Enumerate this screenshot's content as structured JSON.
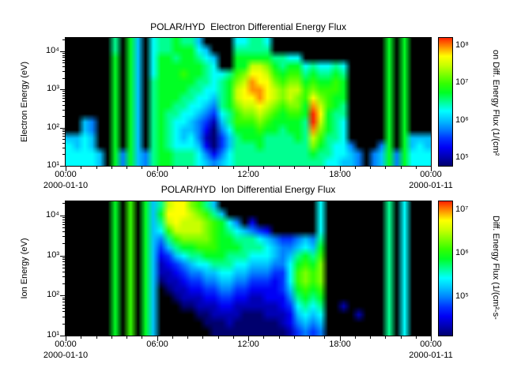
{
  "background": "#ffffff",
  "colormap": [
    "#000000",
    "#00006e",
    "#0000b4",
    "#0000f5",
    "#0033ff",
    "#0080ff",
    "#00c3ff",
    "#00ffff",
    "#00ff91",
    "#00ff24",
    "#33ff00",
    "#7dff00",
    "#c8ff00",
    "#ffff00",
    "#ff9100",
    "#ff2200"
  ],
  "chart_data": [
    {
      "type": "heatmap",
      "id": "electron",
      "title": "POLAR/HYD  Electron Differential Energy Flux",
      "xlabel": "",
      "ylabel": "Electron Energy (eV)",
      "x_ticks": [
        "00:00",
        "06:00",
        "12:00",
        "18:00",
        "00:00"
      ],
      "x_range_hours": [
        0,
        24
      ],
      "date_start": "2000-01-10",
      "date_end": "2000-01-11",
      "y_scale": "log",
      "y_ticks": [
        "10¹",
        "10²",
        "10³",
        "10⁴"
      ],
      "y_tick_exps": [
        1,
        2,
        3,
        4
      ],
      "y_range_exp": [
        1,
        4.35
      ],
      "colorbar_title": "on Diff. Energy Flux (1/(cm²",
      "colorbar_ticks": [
        "10⁵",
        "10⁶",
        "10⁷",
        "10⁸"
      ],
      "colorbar_tick_exps": [
        5,
        6,
        7,
        8
      ],
      "colorbar_range_exp": [
        4.8,
        8.2
      ],
      "grid_encoding": "each row = 48 half-hour time bins (00:00 to 24:00) as hex colormap indices 0-15 (0 = no flux/black); rows ordered top (~2e4 eV) to bottom (~10 eV)",
      "grid_rows": [
        [
          "00000080",
          "96078898",
          "86000077",
          "88700000",
          "00000000",
          "00909000"
        ],
        [
          "00000080",
          "96078899",
          "97600088",
          "88800000",
          "00000000",
          "00909000"
        ],
        [
          "00000090",
          "96079989",
          "98760099",
          "99988770",
          "00000000",
          "00909000"
        ],
        [
          "00000090",
          "96079999",
          "99870099",
          "ccb98997",
          "87787000",
          "00909000"
        ],
        [
          "00000090",
          "9607999a",
          "998778ab",
          "ddca9aa8",
          "98898000",
          "00909000"
        ],
        [
          "00000090",
          "96089999",
          "988789bc",
          "eddbabb9",
          "a99a9000",
          "00909000"
        ],
        [
          "00000090",
          "96089999",
          "887789cd",
          "eedcbcca",
          "baaa9000",
          "00909000"
        ],
        [
          "00000090",
          "96089998",
          "877689cd",
          "dedcbcba",
          "dba99000",
          "00909000"
        ],
        [
          "00000090",
          "96089988",
          "776589bc",
          "cdcbabb9",
          "eca98000",
          "00909000"
        ],
        [
          "00000090",
          "96089887",
          "765478ab",
          "bcba9aa9",
          "fd988000",
          "00909000"
        ],
        [
          "00650090",
          "96089877",
          "654268aa",
          "aba99998",
          "fc987000",
          "00909000"
        ],
        [
          "00650090",
          "96089876",
          "65315799",
          "9a998998",
          "eb987000",
          "00909000"
        ],
        [
          "66760090",
          "96089876",
          "75214689",
          "99888898",
          "ca887000",
          "00909666"
        ],
        [
          "76760090",
          "96089877",
          "76314688",
          "89888888",
          "b9877500",
          "05909676"
        ],
        [
          "77776095",
          "96589988",
          "87535788",
          "88888888",
          "98877650",
          "56959777"
        ],
        [
          "77776095",
          "96589988",
          "87656788",
          "88888888",
          "88776650",
          "56959777"
        ]
      ]
    },
    {
      "type": "heatmap",
      "id": "ion",
      "title": "POLAR/HYD  Ion Differential Energy Flux",
      "xlabel": "",
      "ylabel": "Ion Energy (eV)",
      "x_ticks": [
        "00:00",
        "06:00",
        "12:00",
        "18:00",
        "00:00"
      ],
      "x_range_hours": [
        0,
        24
      ],
      "date_start": "2000-01-10",
      "date_end": "2000-01-11",
      "y_scale": "log",
      "y_ticks": [
        "10¹",
        "10²",
        "10³",
        "10⁴"
      ],
      "y_tick_exps": [
        1,
        2,
        3,
        4
      ],
      "y_range_exp": [
        1,
        4.35
      ],
      "colorbar_title": "Diff. Energy Flux (1/(cm²-s-",
      "colorbar_ticks": [
        "10⁵",
        "10⁶",
        "10⁷"
      ],
      "colorbar_tick_exps": [
        5,
        6,
        7
      ],
      "colorbar_range_exp": [
        4.1,
        7.2
      ],
      "grid_encoding": "each row = 48 half-hour time bins (00:00 to 24:00) as hex colormap indices 0-15 (0 = no flux/black); rows ordered top (~2e4 eV) to bottom (~10 eV)",
      "grid_rows": [
        [
          "00000090",
          "a0968cdd",
          "ba860000",
          "00000000",
          "07000000",
          "00807000"
        ],
        [
          "00000090",
          "a0969ddd",
          "cba86000",
          "00000000",
          "07000000",
          "00807000"
        ],
        [
          "00000090",
          "a0968cdc",
          "ccba9750",
          "30000000",
          "07000000",
          "00807000"
        ],
        [
          "00000090",
          "a0967acc",
          "ccba9876",
          "54300000",
          "07000000",
          "00807000"
        ],
        [
          "00000090",
          "a09658ab",
          "bbba9988",
          "87654456",
          "58000000",
          "00807000"
        ],
        [
          "00000090",
          "a0964689",
          "9aaa9998",
          "88765567",
          "69000000",
          "00807000"
        ],
        [
          "00000090",
          "a0963467",
          "88999888",
          "77765689",
          "8a000000",
          "00807000"
        ],
        [
          "00000090",
          "a0962345",
          "67788877",
          "6665579a",
          "9b000000",
          "00807000"
        ],
        [
          "00000090",
          "a0962234",
          "55667766",
          "555447ab",
          "ab000000",
          "00807000"
        ],
        [
          "00000090",
          "a0961223",
          "44556655",
          "444347ab",
          "ab000000",
          "00807000"
        ],
        [
          "00000090",
          "a0960122",
          "33445544",
          "3333469a",
          "9a000000",
          "00807000"
        ],
        [
          "00000090",
          "a0960012",
          "22334433",
          "22333589",
          "89000000",
          "00807000"
        ],
        [
          "00000090",
          "a0960001",
          "12223322",
          "22223478",
          "78002000",
          "00807000"
        ],
        [
          "00000090",
          "a0960000",
          "01122221",
          "11222367",
          "67000020",
          "00807000"
        ],
        [
          "00000090",
          "a0960000",
          "00111211",
          "11112356",
          "56000000",
          "00807000"
        ],
        [
          "00000090",
          "a0960000",
          "00011111",
          "11111245",
          "45000000",
          "00807000"
        ]
      ]
    }
  ]
}
